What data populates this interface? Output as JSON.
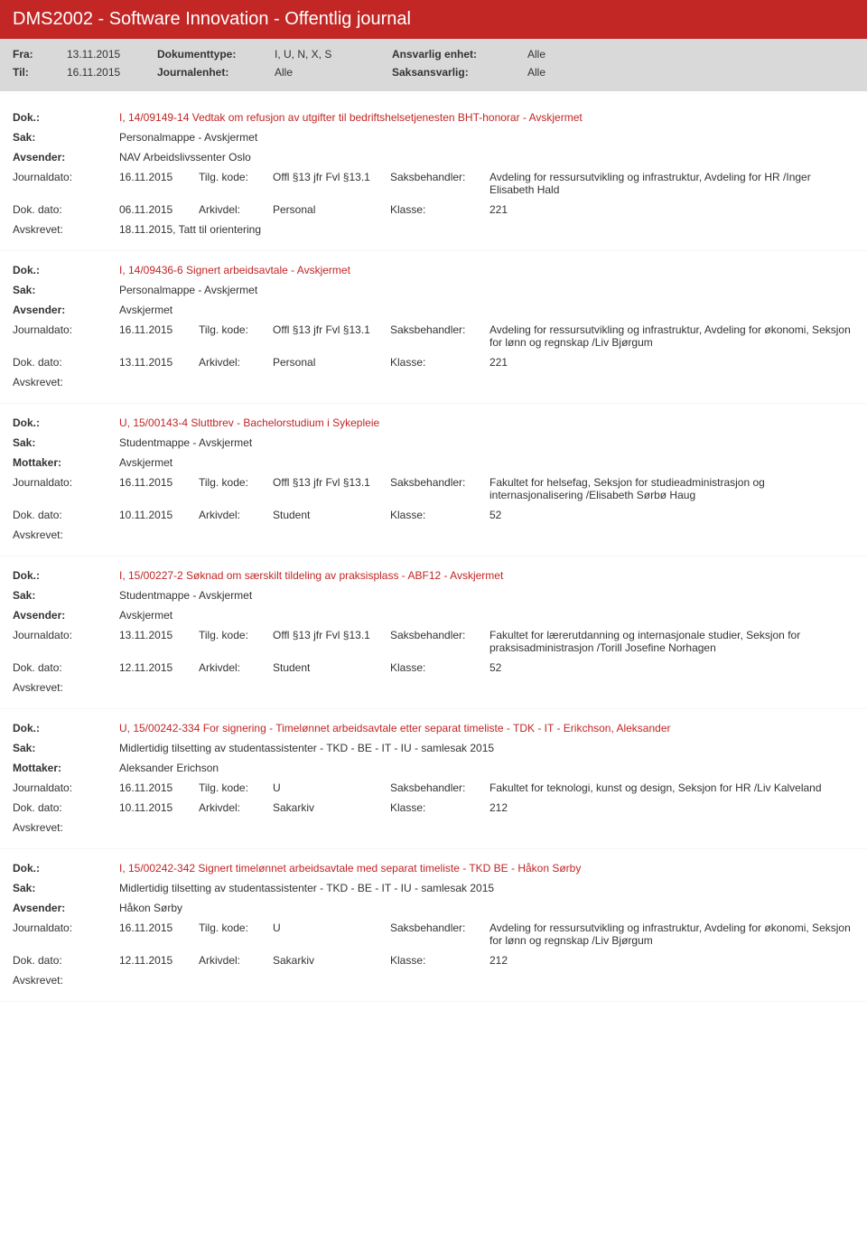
{
  "colors": {
    "header_bg": "#c22625",
    "header_text": "#ffffff",
    "filter_bg": "#d9d9d9",
    "dok_text": "#c22625",
    "body_text": "#333333"
  },
  "header": {
    "title": "DMS2002 - Software Innovation - Offentlig journal"
  },
  "filter": {
    "fra_label": "Fra:",
    "fra_value": "13.11.2015",
    "til_label": "Til:",
    "til_value": "16.11.2015",
    "doktype_label": "Dokumenttype:",
    "doktype_value": "I, U, N, X, S",
    "journalenhet_label": "Journalenhet:",
    "journalenhet_value": "Alle",
    "ansvarlig_label": "Ansvarlig enhet:",
    "ansvarlig_value": "Alle",
    "saksansvarlig_label": "Saksansvarlig:",
    "saksansvarlig_value": "Alle"
  },
  "labels": {
    "dok": "Dok.:",
    "sak": "Sak:",
    "avsender": "Avsender:",
    "mottaker": "Mottaker:",
    "journaldato": "Journaldato:",
    "tilgkode": "Tilg. kode:",
    "saksbehandler": "Saksbehandler:",
    "dokdato": "Dok. dato:",
    "arkivdel": "Arkivdel:",
    "klasse": "Klasse:",
    "avskrevet": "Avskrevet:"
  },
  "entries": [
    {
      "dok": "I, 14/09149-14 Vedtak om refusjon av utgifter til bedriftshelsetjenesten BHT-honorar - Avskjermet",
      "sak": "Personalmappe - Avskjermet",
      "party_label": "Avsender:",
      "party_value": "NAV Arbeidslivssenter Oslo",
      "journaldato": "16.11.2015",
      "tilgkode": "Offl §13 jfr Fvl §13.1",
      "saksbehandler": "Avdeling for ressursutvikling og infrastruktur, Avdeling for HR /Inger Elisabeth Hald",
      "dokdato": "06.11.2015",
      "arkivdel": "Personal",
      "klasse": "221",
      "avskrevet": "18.11.2015, Tatt til orientering"
    },
    {
      "dok": "I, 14/09436-6 Signert arbeidsavtale - Avskjermet",
      "sak": "Personalmappe - Avskjermet",
      "party_label": "Avsender:",
      "party_value": "Avskjermet",
      "journaldato": "16.11.2015",
      "tilgkode": "Offl §13 jfr Fvl §13.1",
      "saksbehandler": "Avdeling for ressursutvikling og infrastruktur, Avdeling for økonomi, Seksjon for lønn og regnskap /Liv Bjørgum",
      "dokdato": "13.11.2015",
      "arkivdel": "Personal",
      "klasse": "221",
      "avskrevet": ""
    },
    {
      "dok": "U, 15/00143-4 Sluttbrev - Bachelorstudium i Sykepleie",
      "sak": "Studentmappe - Avskjermet",
      "party_label": "Mottaker:",
      "party_value": "Avskjermet",
      "journaldato": "16.11.2015",
      "tilgkode": "Offl §13 jfr Fvl §13.1",
      "saksbehandler": "Fakultet for helsefag, Seksjon for studieadministrasjon og internasjonalisering /Elisabeth Sørbø Haug",
      "dokdato": "10.11.2015",
      "arkivdel": "Student",
      "klasse": "52",
      "avskrevet": ""
    },
    {
      "dok": "I, 15/00227-2 Søknad om særskilt tildeling av praksisplass - ABF12 - Avskjermet",
      "sak": "Studentmappe - Avskjermet",
      "party_label": "Avsender:",
      "party_value": "Avskjermet",
      "journaldato": "13.11.2015",
      "tilgkode": "Offl §13 jfr Fvl §13.1",
      "saksbehandler": "Fakultet for lærerutdanning og internasjonale studier, Seksjon for praksisadministrasjon /Torill Josefine Norhagen",
      "dokdato": "12.11.2015",
      "arkivdel": "Student",
      "klasse": "52",
      "avskrevet": ""
    },
    {
      "dok": "U, 15/00242-334 For signering - Timelønnet arbeidsavtale etter separat timeliste - TDK - IT - Erikchson, Aleksander",
      "sak": "Midlertidig tilsetting av studentassistenter - TKD - BE - IT - IU - samlesak 2015",
      "party_label": "Mottaker:",
      "party_value": "Aleksander Erichson",
      "journaldato": "16.11.2015",
      "tilgkode": "U",
      "saksbehandler": "Fakultet for teknologi, kunst og design, Seksjon for HR /Liv Kalveland",
      "dokdato": "10.11.2015",
      "arkivdel": "Sakarkiv",
      "klasse": "212",
      "avskrevet": ""
    },
    {
      "dok": "I, 15/00242-342 Signert timelønnet arbeidsavtale med separat timeliste - TKD BE - Håkon Sørby",
      "sak": "Midlertidig tilsetting av studentassistenter - TKD - BE - IT - IU - samlesak 2015",
      "party_label": "Avsender:",
      "party_value": "Håkon Sørby",
      "journaldato": "16.11.2015",
      "tilgkode": "U",
      "saksbehandler": "Avdeling for ressursutvikling og infrastruktur, Avdeling for økonomi, Seksjon for lønn og regnskap /Liv Bjørgum",
      "dokdato": "12.11.2015",
      "arkivdel": "Sakarkiv",
      "klasse": "212",
      "avskrevet": ""
    }
  ]
}
